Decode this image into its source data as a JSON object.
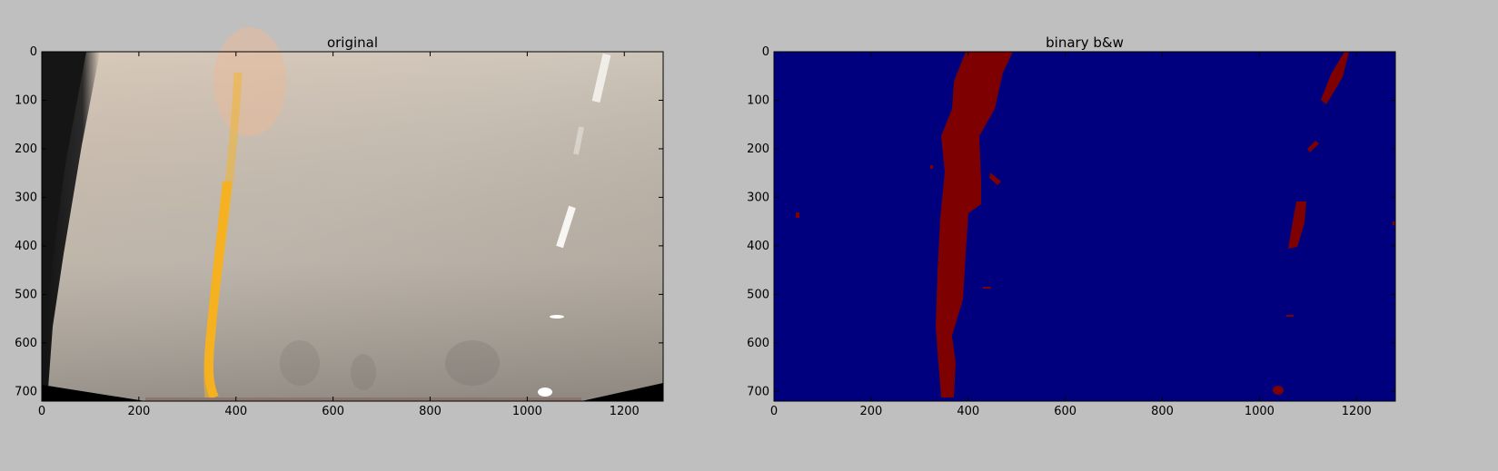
{
  "chart_data": [
    {
      "type": "image",
      "title": "original",
      "xlabel": "",
      "ylabel": "",
      "xlim": [
        0,
        1280
      ],
      "ylim": [
        720,
        0
      ],
      "xticks": [
        0,
        200,
        400,
        600,
        800,
        1000,
        1200
      ],
      "yticks": [
        0,
        100,
        200,
        300,
        400,
        500,
        600,
        700
      ],
      "content": "warped road photo with yellow left lane line and white dashed right lane line",
      "colors": {
        "road": "#c9bfb3",
        "lane_yellow": "#f2b52e",
        "lane_white": "#ffffff",
        "edge_dark": "#1a1a1a"
      }
    },
    {
      "type": "heatmap",
      "title": "binary b&w",
      "xlabel": "",
      "ylabel": "",
      "xlim": [
        0,
        1280
      ],
      "ylim": [
        720,
        0
      ],
      "xticks": [
        0,
        200,
        400,
        600,
        800,
        1000,
        1200
      ],
      "yticks": [
        0,
        100,
        200,
        300,
        400,
        500,
        600,
        700
      ],
      "values": [
        0,
        1
      ],
      "colormap": {
        "0": "#00007f",
        "1": "#7f0000"
      },
      "content": "binary mask highlighting left lane line and right dashed lane line"
    }
  ]
}
